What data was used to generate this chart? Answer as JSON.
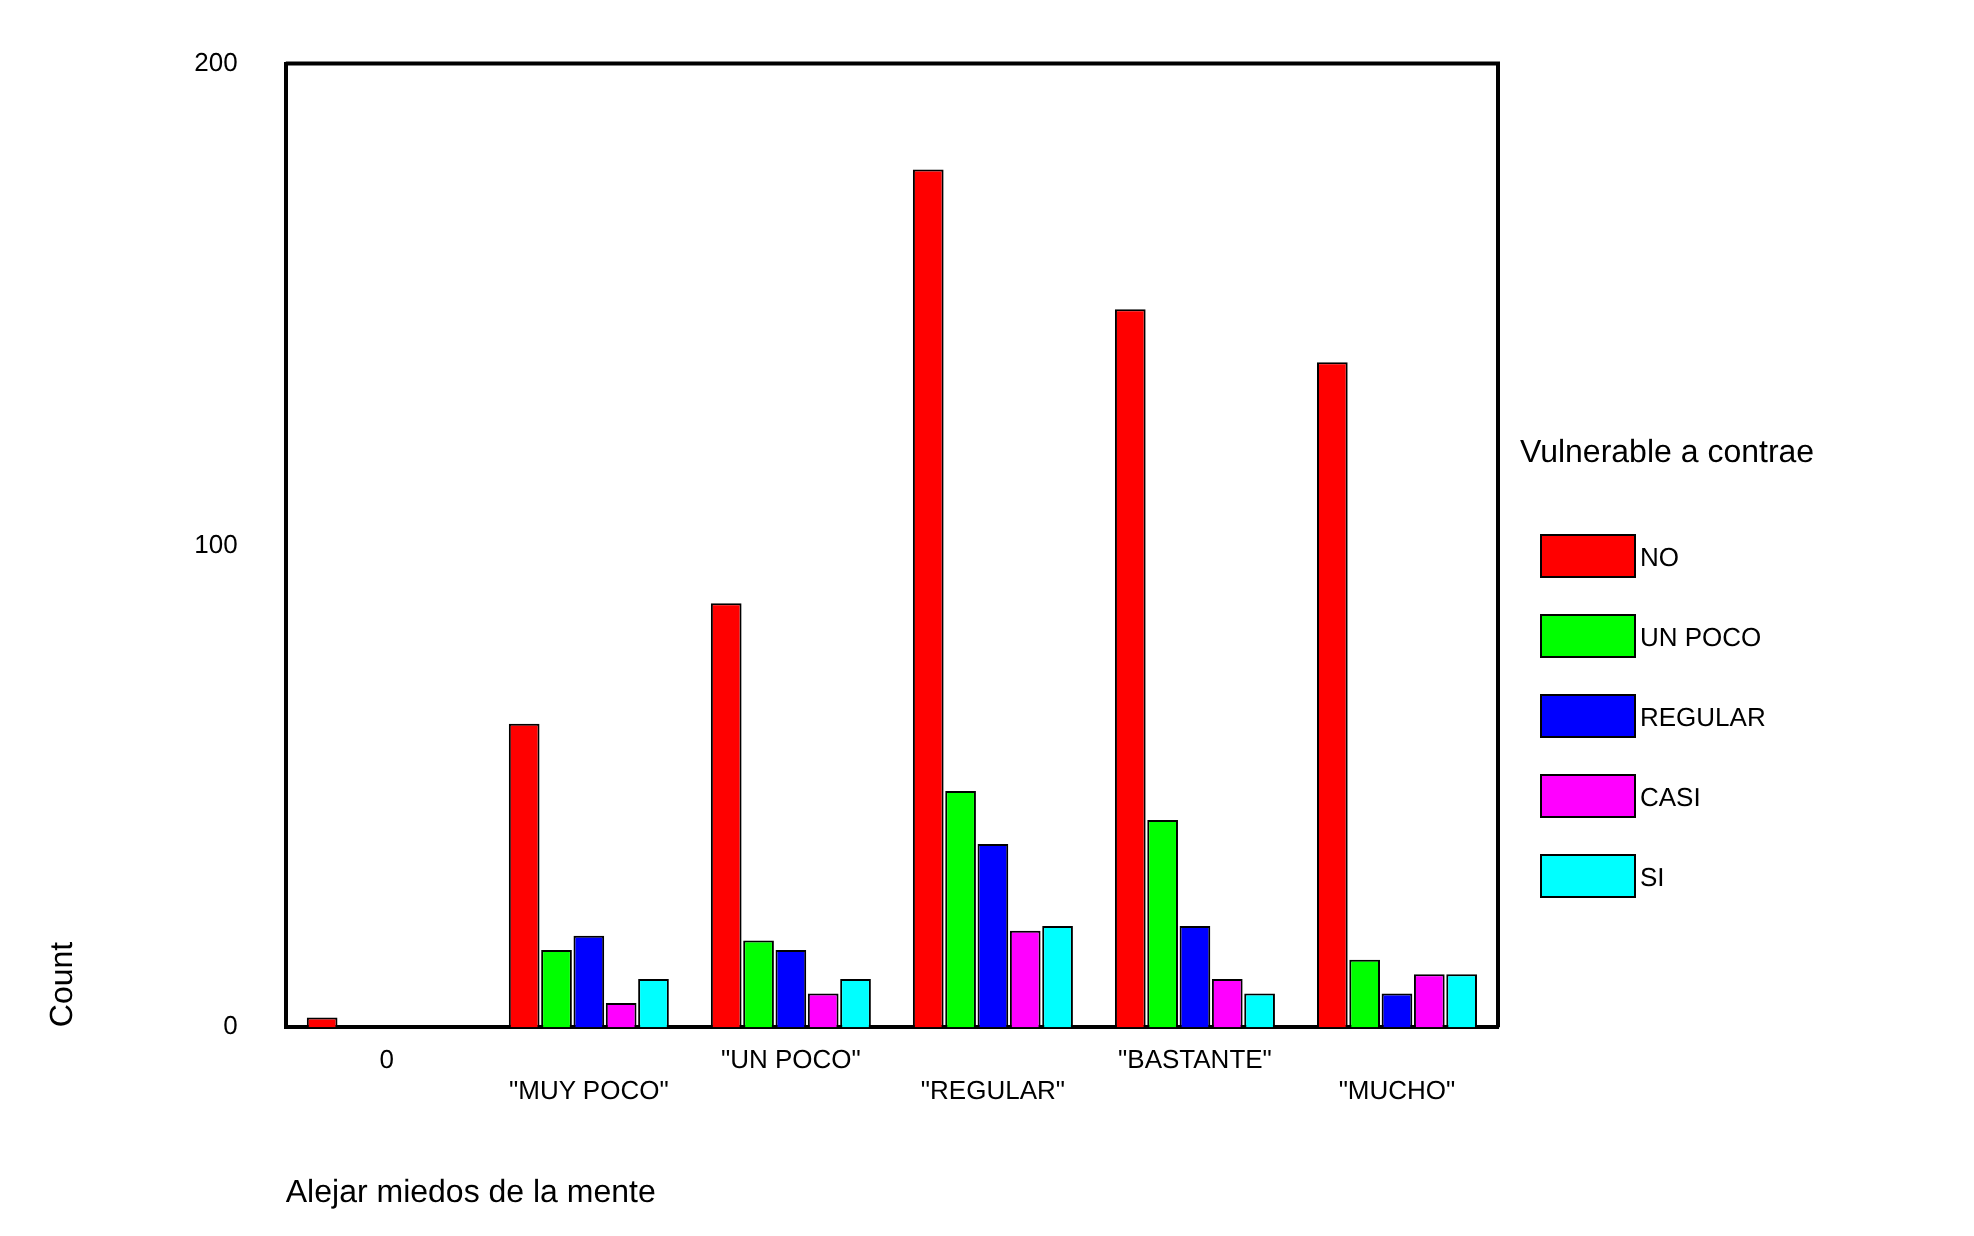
{
  "chart_data": {
    "type": "bar",
    "xlabel": "Alejar miedos de la mente",
    "ylabel": "Count",
    "legend_title": "Vulnerable a contrae",
    "categories": [
      "0",
      "\"MUY POCO\"",
      "\"UN POCO\"",
      "\"REGULAR\"",
      "\"BASTANTE\"",
      "\"MUCHO\""
    ],
    "series": [
      {
        "name": "NO",
        "color": "#ff0000",
        "values": [
          2,
          63,
          88,
          178,
          149,
          138
        ]
      },
      {
        "name": "UN POCO",
        "color": "#00ff00",
        "values": [
          0,
          16,
          18,
          49,
          43,
          14
        ]
      },
      {
        "name": "REGULAR",
        "color": "#0000ff",
        "values": [
          0,
          19,
          16,
          38,
          21,
          7
        ]
      },
      {
        "name": "CASI",
        "color": "#ff00ff",
        "values": [
          0,
          5,
          7,
          20,
          10,
          11
        ]
      },
      {
        "name": "SI",
        "color": "#00ffff",
        "values": [
          0,
          10,
          10,
          21,
          7,
          11
        ]
      }
    ],
    "ylim": [
      0,
      200
    ],
    "yticks": [
      0,
      100,
      200
    ],
    "grid": false,
    "legend": "right"
  }
}
